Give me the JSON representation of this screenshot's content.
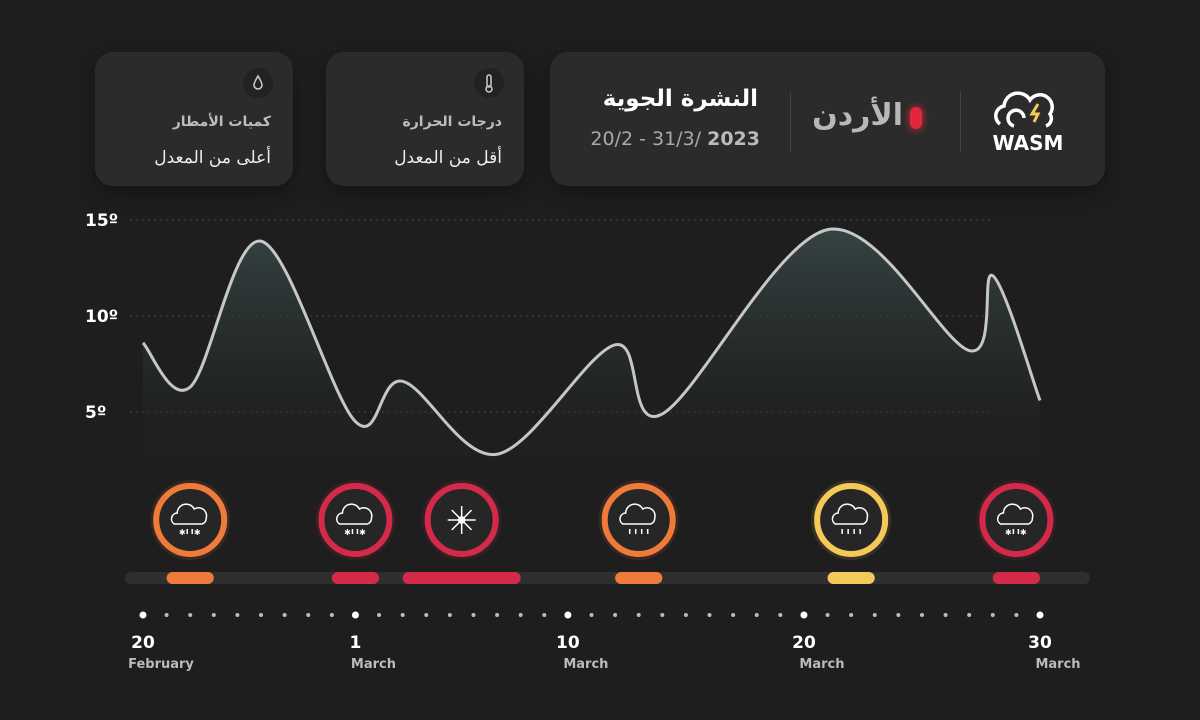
{
  "header": {
    "title": "النشرة الجوية",
    "date_range": "20/2 - 31/3/",
    "year": "2023",
    "country": "الأردن",
    "brand": "WASM"
  },
  "cards": [
    {
      "title": "درجات الحرارة",
      "text": "أقل من المعدل"
    },
    {
      "title": "كميات الأمطار",
      "text": "أعلى من المعدل"
    }
  ],
  "chart_data": {
    "type": "line",
    "x": [
      "2023-02-20",
      "2023-02-22",
      "2023-02-25",
      "2023-03-01",
      "2023-03-03",
      "2023-03-07",
      "2023-03-12",
      "2023-03-14",
      "2023-03-21",
      "2023-03-27",
      "2023-03-28",
      "2023-03-30"
    ],
    "series": [
      {
        "color": "#d8d8d8",
        "values": [
          8.6,
          6.3,
          13.9,
          4.5,
          6.6,
          2.8,
          8.5,
          4.9,
          14.5,
          8.2,
          12.1,
          5.6
        ]
      }
    ],
    "xlim": [
      "2023-02-20",
      "2023-03-30"
    ],
    "xticks": [
      {
        "value": "2023-02-20",
        "label": "20"
      },
      {
        "value": "2023-03-01",
        "label": "1"
      },
      {
        "value": "2023-03-10",
        "label": "10"
      },
      {
        "value": "2023-03-20",
        "label": "20"
      },
      {
        "value": "2023-03-30",
        "label": "30"
      }
    ],
    "xtick_months": [
      "February",
      "March",
      "March",
      "March",
      "March"
    ],
    "ylim": [
      0,
      15
    ],
    "yticks": [
      {
        "value": 5,
        "label": "5º"
      },
      {
        "value": 10,
        "label": "10º"
      },
      {
        "value": 15,
        "label": "15º"
      }
    ],
    "grid": true,
    "events": [
      {
        "start": "2023-02-21",
        "end": "2023-02-23",
        "color": "#f07a3a",
        "icon": "rain-snow"
      },
      {
        "start": "2023-02-28",
        "end": "2023-03-02",
        "color": "#d42a4a",
        "icon": "rain-snow"
      },
      {
        "start": "2023-03-03",
        "end": "2023-03-08",
        "color": "#d42a4a",
        "icon": "snow"
      },
      {
        "start": "2023-03-12",
        "end": "2023-03-14",
        "color": "#f07a3a",
        "icon": "rain"
      },
      {
        "start": "2023-03-21",
        "end": "2023-03-23",
        "color": "#f5c85a",
        "icon": "rain"
      },
      {
        "start": "2023-03-28",
        "end": "2023-03-30",
        "color": "#d42a4a",
        "icon": "rain-snow"
      }
    ]
  }
}
